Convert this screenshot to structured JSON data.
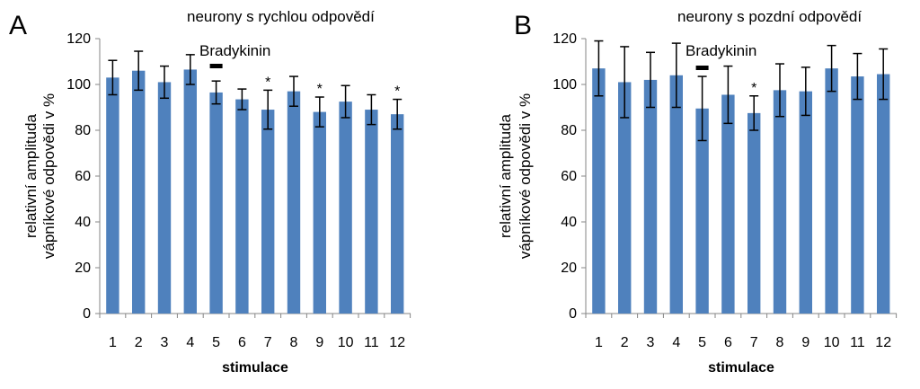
{
  "bar_color": "#4F81BD",
  "error_color": "#000000",
  "chart_data": [
    {
      "type": "bar",
      "panel_label": "A",
      "title": "neurony s rychlou odpovědí",
      "xlabel": "stimulace",
      "ylabel_lines": [
        "relativní amplituda",
        "vápníkové odpovědi v  %"
      ],
      "ylim": [
        0,
        120
      ],
      "yticks": [
        0,
        20,
        40,
        60,
        80,
        100,
        120
      ],
      "categories": [
        "1",
        "2",
        "3",
        "4",
        "5",
        "6",
        "7",
        "8",
        "9",
        "10",
        "11",
        "12"
      ],
      "values": [
        103,
        106,
        101,
        106.5,
        96.5,
        93.5,
        89,
        97,
        88,
        92.5,
        89,
        87
      ],
      "errors": [
        7.5,
        8.5,
        7,
        6.5,
        5,
        4.5,
        8.5,
        6.5,
        6.5,
        7,
        6.5,
        6.5
      ],
      "annotation_label": "Bradykinin",
      "annotation_bar_category": "5",
      "significant": [
        "7",
        "9",
        "12"
      ],
      "significance_marker": "*"
    },
    {
      "type": "bar",
      "panel_label": "B",
      "title": "neurony s pozdní odpovědí",
      "xlabel": "stimulace",
      "ylabel_lines": [
        "relativní amplituda",
        "vápníkové odpovědi v  %"
      ],
      "ylim": [
        0,
        120
      ],
      "yticks": [
        0,
        20,
        40,
        60,
        80,
        100,
        120
      ],
      "categories": [
        "1",
        "2",
        "3",
        "4",
        "5",
        "6",
        "7",
        "8",
        "9",
        "10",
        "11",
        "12"
      ],
      "values": [
        107,
        101,
        102,
        104,
        89.5,
        95.5,
        87.5,
        97.5,
        97,
        107,
        103.5,
        104.5
      ],
      "errors": [
        12,
        15.5,
        12,
        14,
        14,
        12.5,
        7.5,
        11.5,
        10.5,
        10,
        10,
        11
      ],
      "annotation_label": "Bradykinin",
      "annotation_bar_category": "5",
      "significant": [
        "7"
      ],
      "significance_marker": "*"
    }
  ]
}
